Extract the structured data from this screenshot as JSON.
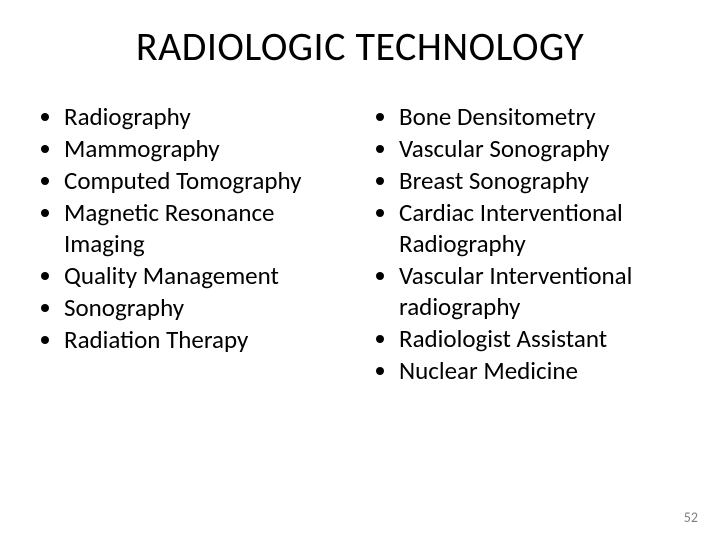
{
  "title": "RADIOLOGIC TECHNOLOGY",
  "left_column": {
    "items": [
      "Radiography",
      "Mammography",
      "Computed Tomography",
      "Magnetic Resonance Imaging",
      "Quality Management",
      "Sonography",
      "Radiation Therapy"
    ]
  },
  "right_column": {
    "items": [
      "Bone Densitometry",
      "Vascular Sonography",
      "Breast Sonography",
      "Cardiac Interventional Radiography",
      "Vascular Interventional radiography",
      "Radiologist Assistant",
      "Nuclear Medicine"
    ]
  },
  "page_number": "52",
  "style": {
    "background_color": "#ffffff",
    "title_fontsize": 40,
    "body_fontsize": 25,
    "text_color": "#000000",
    "page_num_color": "#7f7f7f",
    "page_num_fontsize": 14,
    "bullet_style": "disc",
    "font_family": "Calibri"
  }
}
